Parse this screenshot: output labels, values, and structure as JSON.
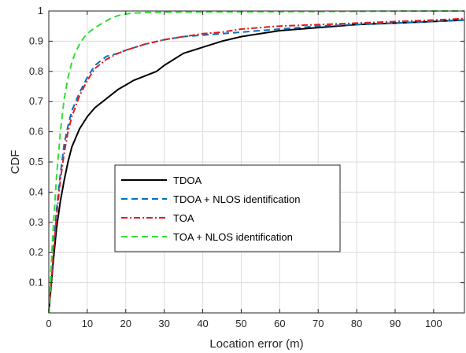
{
  "chart_data": {
    "type": "line",
    "title": "",
    "xlabel": "Location error (m)",
    "ylabel": "CDF",
    "xlim": [
      0,
      108
    ],
    "ylim": [
      0,
      1
    ],
    "x_ticks": [
      0,
      10,
      20,
      30,
      40,
      50,
      60,
      70,
      80,
      90,
      100
    ],
    "y_ticks": [
      0.1,
      0.2,
      0.3,
      0.4,
      0.5,
      0.6,
      0.7,
      0.8,
      0.9,
      1
    ],
    "x_tick_labels": [
      "0",
      "10",
      "20",
      "30",
      "40",
      "50",
      "60",
      "70",
      "80",
      "90",
      "100"
    ],
    "y_tick_labels": [
      "0.1",
      "0.2",
      "0.3",
      "0.4",
      "0.5",
      "0.6",
      "0.7",
      "0.8",
      "0.9",
      "1"
    ],
    "grid": true,
    "legend_position": "center-left",
    "series": [
      {
        "name": "TDOA",
        "color": "#000000",
        "dash": "solid",
        "x": [
          0,
          1,
          2,
          3,
          4,
          5,
          6,
          7,
          8,
          10,
          12,
          15,
          18,
          20,
          22,
          25,
          28,
          30,
          35,
          40,
          45,
          50,
          55,
          60,
          70,
          80,
          90,
          100,
          108
        ],
        "y": [
          0,
          0.15,
          0.28,
          0.37,
          0.44,
          0.5,
          0.55,
          0.58,
          0.61,
          0.65,
          0.68,
          0.71,
          0.74,
          0.755,
          0.77,
          0.785,
          0.8,
          0.82,
          0.86,
          0.88,
          0.9,
          0.915,
          0.925,
          0.935,
          0.945,
          0.955,
          0.96,
          0.965,
          0.97
        ]
      },
      {
        "name": "TDOA + NLOS identification",
        "color": "#0072BD",
        "dash": "dashed",
        "x": [
          0,
          1,
          2,
          3,
          4,
          5,
          6,
          8,
          10,
          12,
          15,
          18,
          20,
          25,
          30,
          35,
          40,
          50,
          60,
          70,
          80,
          90,
          100,
          108
        ],
        "y": [
          0,
          0.18,
          0.34,
          0.46,
          0.56,
          0.62,
          0.67,
          0.73,
          0.78,
          0.82,
          0.85,
          0.86,
          0.87,
          0.89,
          0.905,
          0.915,
          0.92,
          0.93,
          0.94,
          0.95,
          0.955,
          0.96,
          0.965,
          0.97
        ]
      },
      {
        "name": "TOA",
        "color": "#E41A1C",
        "dash": "dashdot",
        "x": [
          0,
          1,
          2,
          3,
          4,
          5,
          6,
          8,
          10,
          12,
          15,
          18,
          20,
          25,
          30,
          35,
          40,
          45,
          50,
          55,
          60,
          70,
          80,
          90,
          100,
          108
        ],
        "y": [
          0,
          0.17,
          0.32,
          0.44,
          0.53,
          0.6,
          0.65,
          0.72,
          0.77,
          0.81,
          0.84,
          0.86,
          0.87,
          0.89,
          0.905,
          0.915,
          0.925,
          0.93,
          0.94,
          0.945,
          0.95,
          0.955,
          0.96,
          0.965,
          0.97,
          0.975
        ]
      },
      {
        "name": "TOA + NLOS identification",
        "color": "#33DD33",
        "dash": "dashed",
        "x": [
          0,
          1,
          2,
          3,
          4,
          5,
          6,
          7,
          8,
          9,
          10,
          12,
          14,
          16,
          18,
          20,
          22,
          25,
          30,
          40,
          60,
          80,
          100,
          108
        ],
        "y": [
          0,
          0.25,
          0.45,
          0.6,
          0.71,
          0.78,
          0.83,
          0.865,
          0.89,
          0.91,
          0.925,
          0.945,
          0.96,
          0.975,
          0.985,
          0.99,
          0.993,
          0.995,
          0.996,
          0.997,
          0.998,
          0.999,
          1.0,
          1.0
        ]
      }
    ]
  }
}
